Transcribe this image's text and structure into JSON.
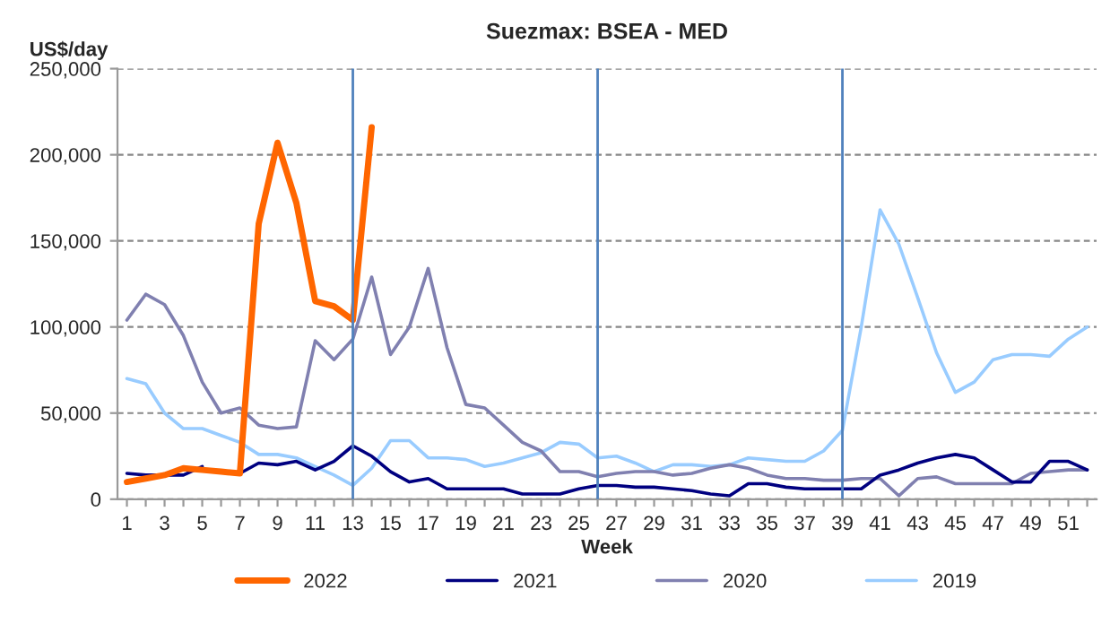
{
  "chart_data": {
    "type": "line",
    "title": "Suezmax: BSEA - MED",
    "xlabel": "Week",
    "ylabel": "US$/day",
    "x": [
      1,
      2,
      3,
      4,
      5,
      6,
      7,
      8,
      9,
      10,
      11,
      12,
      13,
      14,
      15,
      16,
      17,
      18,
      19,
      20,
      21,
      22,
      23,
      24,
      25,
      26,
      27,
      28,
      29,
      30,
      31,
      32,
      33,
      34,
      35,
      36,
      37,
      38,
      39,
      40,
      41,
      42,
      43,
      44,
      45,
      46,
      47,
      48,
      49,
      50,
      51,
      52
    ],
    "series": [
      {
        "name": "2022",
        "color": "#ff6600",
        "values": [
          10000,
          12000,
          14000,
          18000,
          17000,
          16000,
          15000,
          160000,
          207000,
          172000,
          115000,
          112000,
          104000,
          216000,
          null,
          null,
          null,
          null,
          null,
          null,
          null,
          null,
          null,
          null,
          null,
          null,
          null,
          null,
          null,
          null,
          null,
          null,
          null,
          null,
          null,
          null,
          null,
          null,
          null,
          null,
          null,
          null,
          null,
          null,
          null,
          null,
          null,
          null,
          null,
          null,
          null,
          null
        ]
      },
      {
        "name": "2021",
        "color": "#000080",
        "values": [
          15000,
          14000,
          14000,
          14000,
          19000,
          null,
          15000,
          21000,
          20000,
          22000,
          17000,
          22000,
          31000,
          25000,
          16000,
          10000,
          12000,
          6000,
          6000,
          6000,
          6000,
          3000,
          3000,
          3000,
          6000,
          8000,
          8000,
          7000,
          7000,
          6000,
          5000,
          3000,
          2000,
          9000,
          9000,
          7000,
          6000,
          6000,
          6000,
          6000,
          14000,
          17000,
          21000,
          24000,
          26000,
          24000,
          17000,
          10000,
          10000,
          22000,
          22000,
          17000
        ]
      },
      {
        "name": "2020",
        "color": "#8080b0",
        "values": [
          104000,
          119000,
          113000,
          95000,
          68000,
          50000,
          53000,
          43000,
          41000,
          42000,
          92000,
          81000,
          93000,
          129000,
          84000,
          100000,
          134000,
          88000,
          55000,
          53000,
          43000,
          33000,
          28000,
          16000,
          16000,
          13000,
          15000,
          16000,
          16000,
          14000,
          15000,
          18000,
          20000,
          18000,
          14000,
          12000,
          12000,
          11000,
          11000,
          12000,
          12000,
          2000,
          12000,
          13000,
          9000,
          9000,
          9000,
          9000,
          15000,
          16000,
          17000,
          17000
        ]
      },
      {
        "name": "2019",
        "color": "#99ccff",
        "values": [
          70000,
          67000,
          50000,
          41000,
          41000,
          37000,
          33000,
          26000,
          26000,
          24000,
          19000,
          14000,
          8000,
          18000,
          34000,
          34000,
          24000,
          24000,
          23000,
          19000,
          21000,
          24000,
          27000,
          33000,
          32000,
          24000,
          25000,
          21000,
          16000,
          20000,
          20000,
          19000,
          20000,
          24000,
          23000,
          22000,
          22000,
          28000,
          40000,
          100000,
          168000,
          148000,
          117000,
          85000,
          62000,
          68000,
          81000,
          84000,
          84000,
          83000,
          93000,
          100000
        ]
      }
    ],
    "xlim": [
      0.5,
      52.5
    ],
    "xticks": [
      1,
      {
        "value": 2,
        "label": null
      },
      3,
      {
        "value": 4,
        "label": null
      },
      5,
      {
        "value": 6,
        "label": null
      },
      7,
      {
        "value": 8,
        "label": null
      },
      9,
      {
        "value": 10,
        "label": null
      },
      11,
      {
        "value": 12,
        "label": null
      },
      13,
      {
        "value": 14,
        "label": null
      },
      15,
      {
        "value": 16,
        "label": null
      },
      17,
      {
        "value": 18,
        "label": null
      },
      19,
      {
        "value": 20,
        "label": null
      },
      21,
      {
        "value": 22,
        "label": null
      },
      23,
      {
        "value": 24,
        "label": null
      },
      25,
      {
        "value": 26,
        "label": null
      },
      27,
      {
        "value": 28,
        "label": null
      },
      29,
      {
        "value": 30,
        "label": null
      },
      31,
      {
        "value": 32,
        "label": null
      },
      33,
      {
        "value": 34,
        "label": null
      },
      35,
      {
        "value": 36,
        "label": null
      },
      37,
      {
        "value": 38,
        "label": null
      },
      39,
      {
        "value": 40,
        "label": null
      },
      41,
      {
        "value": 42,
        "label": null
      },
      43,
      {
        "value": 44,
        "label": null
      },
      45,
      {
        "value": 46,
        "label": null
      },
      47,
      {
        "value": 48,
        "label": null
      },
      49,
      {
        "value": 50,
        "label": null
      },
      51,
      {
        "value": 52,
        "label": null
      }
    ],
    "ylim": [
      0,
      250000
    ],
    "yticks": [
      0,
      {
        "value": 50000,
        "label": "50,000"
      },
      {
        "value": 100000,
        "label": "100,000"
      },
      {
        "value": 150000,
        "label": "150,000"
      },
      {
        "value": 200000,
        "label": "200,000"
      },
      {
        "value": 250000,
        "label": "250,000"
      }
    ],
    "ref_lines": [
      {
        "axis": "x",
        "value": 13,
        "color": "#4f81bd"
      },
      {
        "axis": "x",
        "value": 26,
        "color": "#4f81bd"
      },
      {
        "axis": "x",
        "value": 39,
        "color": "#4f81bd"
      }
    ],
    "grid": "y",
    "legend": "bottom",
    "line_style": "solid",
    "marker": "none"
  }
}
